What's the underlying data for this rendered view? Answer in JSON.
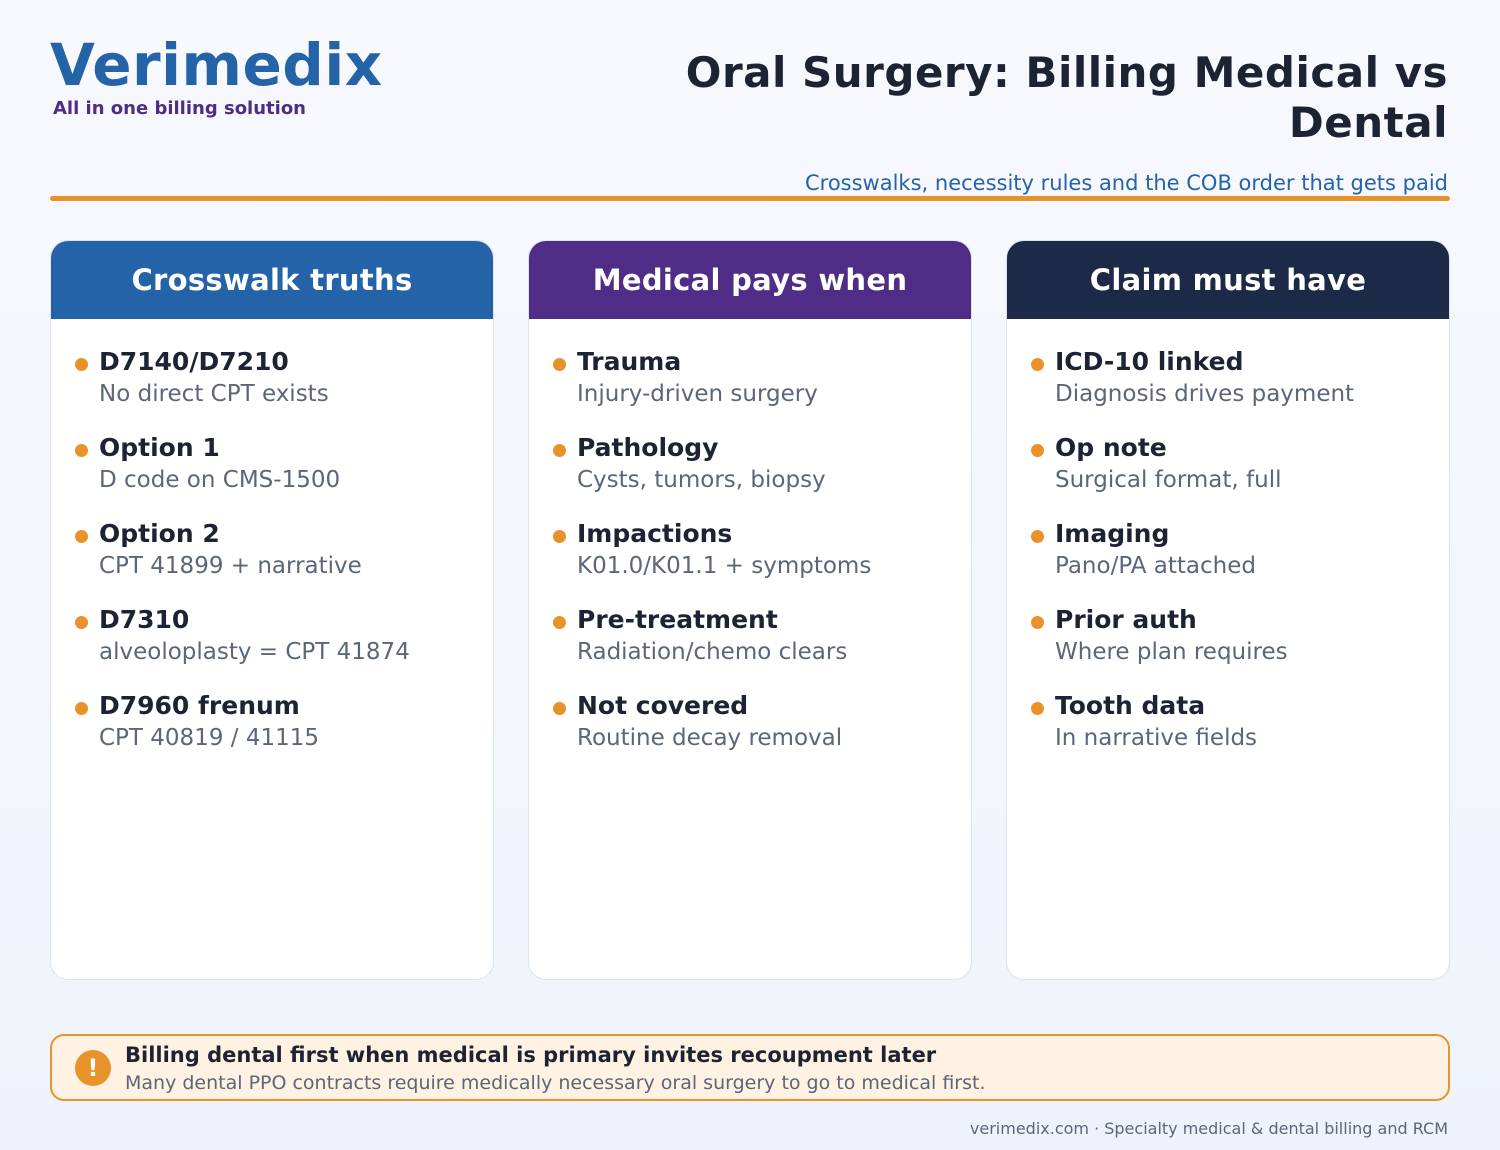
{
  "brand": {
    "name": "Verimedix",
    "tagline": "All in one billing solution"
  },
  "header": {
    "title": "Oral Surgery: Billing Medical vs Dental",
    "subtitle": "Crosswalks, necessity rules and the COB order that gets paid"
  },
  "colors": {
    "accent": "#e8922a",
    "card1_header": "#2563a8",
    "card2_header": "#4f2d87",
    "card3_header": "#1c2a48"
  },
  "cards": [
    {
      "title": "Crosswalk truths",
      "items": [
        {
          "title": "D7140/D7210",
          "desc": "No direct CPT exists"
        },
        {
          "title": "Option 1",
          "desc": "D code on CMS-1500"
        },
        {
          "title": "Option 2",
          "desc": "CPT 41899 + narrative"
        },
        {
          "title": "D7310",
          "desc": "alveoloplasty = CPT 41874"
        },
        {
          "title": "D7960 frenum",
          "desc": "CPT 40819 / 41115"
        }
      ]
    },
    {
      "title": "Medical pays when",
      "items": [
        {
          "title": "Trauma",
          "desc": "Injury-driven surgery"
        },
        {
          "title": "Pathology",
          "desc": "Cysts, tumors, biopsy"
        },
        {
          "title": "Impactions",
          "desc": "K01.0/K01.1 + symptoms"
        },
        {
          "title": "Pre-treatment",
          "desc": "Radiation/chemo clears"
        },
        {
          "title": "Not covered",
          "desc": "Routine decay removal"
        }
      ]
    },
    {
      "title": "Claim must have",
      "items": [
        {
          "title": "ICD-10 linked",
          "desc": "Diagnosis drives payment"
        },
        {
          "title": "Op note",
          "desc": "Surgical format, full"
        },
        {
          "title": "Imaging",
          "desc": "Pano/PA attached"
        },
        {
          "title": "Prior auth",
          "desc": "Where plan requires"
        },
        {
          "title": "Tooth data",
          "desc": "In narrative fields"
        }
      ]
    }
  ],
  "callout": {
    "icon": "exclamation-icon",
    "icon_glyph": "!",
    "title": "Billing dental first when medical is primary invites recoupment later",
    "text": "Many dental PPO contracts require medically necessary oral surgery to go to medical first."
  },
  "footer": {
    "text": "verimedix.com · Specialty medical & dental billing and RCM"
  }
}
